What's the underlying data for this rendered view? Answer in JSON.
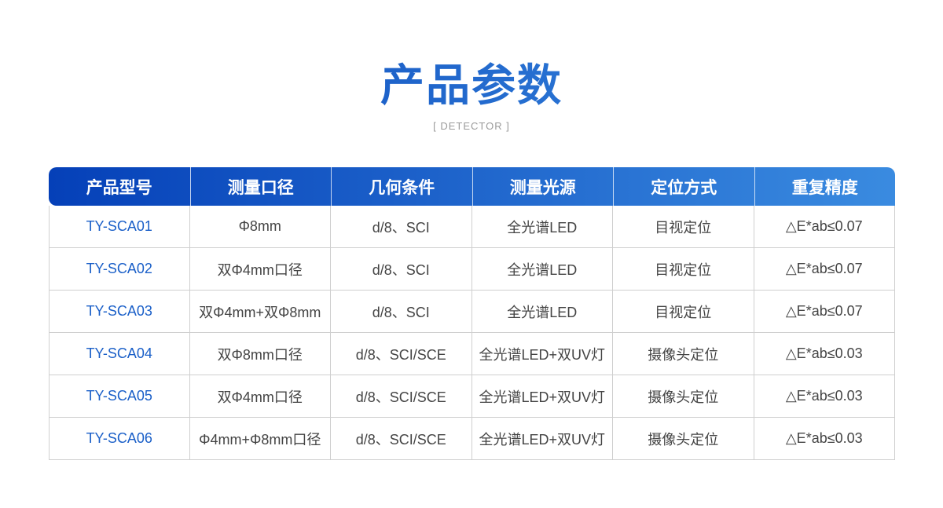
{
  "header": {
    "title": "产品参数",
    "subtitle": "[ DETECTOR ]"
  },
  "colors": {
    "accent_start": "#0540b8",
    "accent_end": "#3a8be0",
    "model_text": "#1a5fc8"
  },
  "table": {
    "columns": [
      "产品型号",
      "测量口径",
      "几何条件",
      "测量光源",
      "定位方式",
      "重复精度"
    ],
    "rows": [
      [
        "TY-SCA01",
        "Φ8mm",
        "d/8、SCI",
        "全光谱LED",
        "目视定位",
        "△E*ab≤0.07"
      ],
      [
        "TY-SCA02",
        "双Φ4mm口径",
        "d/8、SCI",
        "全光谱LED",
        "目视定位",
        "△E*ab≤0.07"
      ],
      [
        "TY-SCA03",
        "双Φ4mm+双Φ8mm",
        "d/8、SCI",
        "全光谱LED",
        "目视定位",
        "△E*ab≤0.07"
      ],
      [
        "TY-SCA04",
        "双Φ8mm口径",
        "d/8、SCI/SCE",
        "全光谱LED+双UV灯",
        "摄像头定位",
        "△E*ab≤0.03"
      ],
      [
        "TY-SCA05",
        "双Φ4mm口径",
        "d/8、SCI/SCE",
        "全光谱LED+双UV灯",
        "摄像头定位",
        "△E*ab≤0.03"
      ],
      [
        "TY-SCA06",
        "Φ4mm+Φ8mm口径",
        "d/8、SCI/SCE",
        "全光谱LED+双UV灯",
        "摄像头定位",
        "△E*ab≤0.03"
      ]
    ]
  }
}
